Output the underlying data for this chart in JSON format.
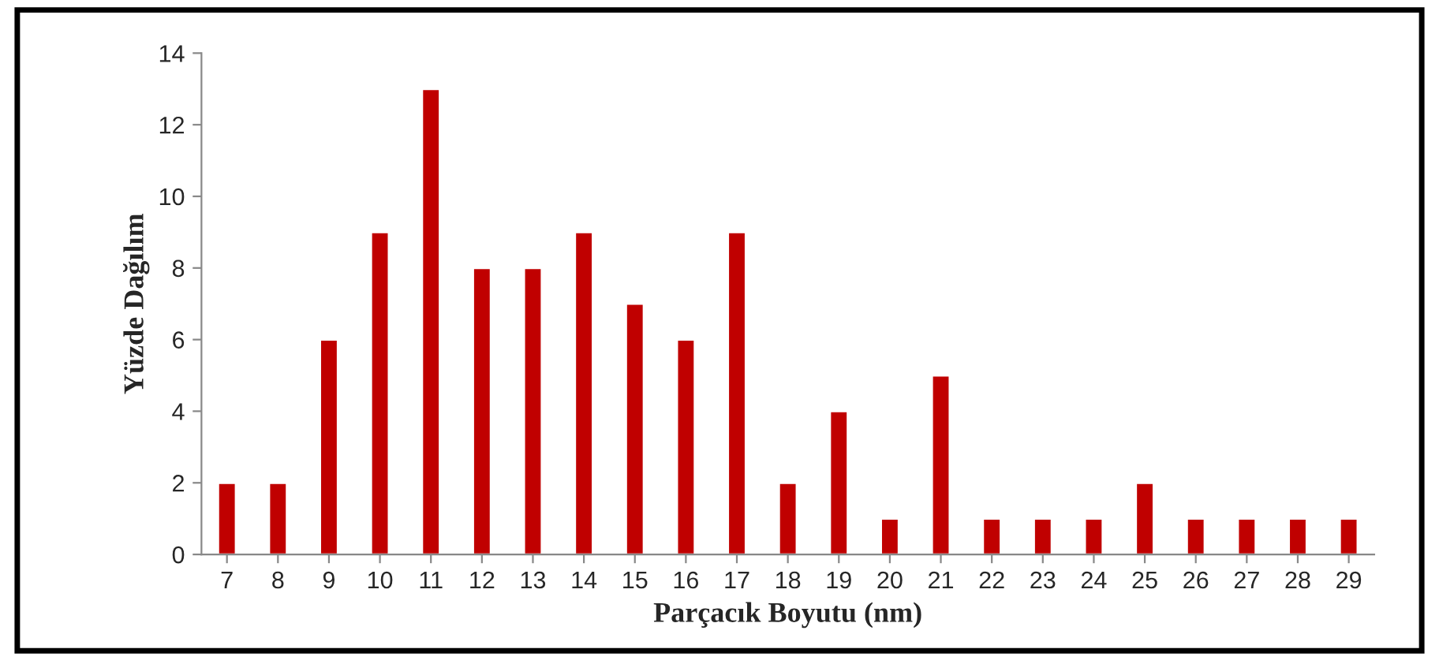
{
  "chart_data": {
    "type": "bar",
    "xlabel": "Parçacık Boyutu (nm)",
    "ylabel": "Yüzde Dağılım",
    "categories": [
      "7",
      "8",
      "9",
      "10",
      "11",
      "12",
      "13",
      "14",
      "15",
      "16",
      "17",
      "18",
      "19",
      "20",
      "21",
      "22",
      "23",
      "24",
      "25",
      "26",
      "27",
      "28",
      "29"
    ],
    "values": [
      2,
      2,
      6,
      9,
      13,
      8,
      8,
      9,
      7,
      6,
      9,
      2,
      4,
      1,
      5,
      1,
      1,
      1,
      2,
      1,
      1,
      1,
      1
    ],
    "color": "#c00000",
    "ylim": [
      0,
      14
    ],
    "yticks": [
      0,
      2,
      4,
      6,
      8,
      10,
      12,
      14
    ],
    "grid": false,
    "legend": false
  }
}
